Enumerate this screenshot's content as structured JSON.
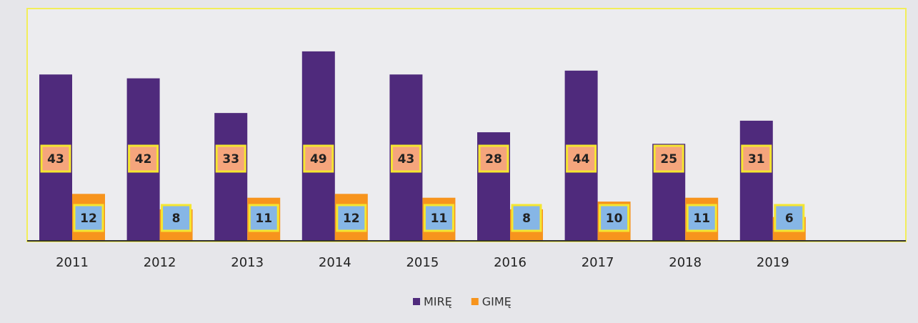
{
  "chart_data": {
    "type": "bar",
    "categories": [
      "2011",
      "2012",
      "2013",
      "2014",
      "2015",
      "2016",
      "2017",
      "2018",
      "2019"
    ],
    "series": [
      {
        "name": "MIRĘ",
        "color": "#4f2a7c",
        "values": [
          43,
          42,
          33,
          49,
          43,
          28,
          44,
          25,
          31
        ]
      },
      {
        "name": "GIMĘ",
        "color": "#f7941d",
        "values": [
          12,
          8,
          11,
          12,
          11,
          8,
          10,
          11,
          6
        ]
      }
    ]
  }
}
